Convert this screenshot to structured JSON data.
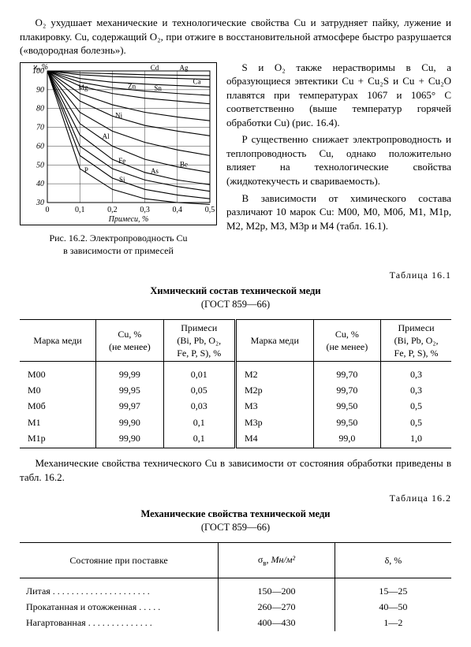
{
  "top_paragraphs": [
    "O₂ ухудшает механические и технологические свойства Cu и затрудняет пайку, лужение и плакировку. Cu, содержащий O₂, при отжиге в восстановительной атмосфере быстро разрушается («водородная болезнь»).",
    "S и O₂ также нерастворимы в Cu, а образующиеся эвтектики Cu + Cu₂S и Cu + Cu₂O плавятся при температурах 1067 и 1065° С соответственно (выше температур горячей обработки Cu) (рис. 16.4).",
    "P существенно снижает электропроводность и теплопроводность Cu, однако положительно влияет на технологические свойства (жидкотекучесть и свариваемость).",
    "В зависимости от химического состава различают 10 марок Cu: М00, М0, М0б, М1, М1р, М2, М2р, М3, М3р и М4 (табл. 16.1)."
  ],
  "figure": {
    "caption_line1": "Рис. 16.2. Электропроводность Cu",
    "caption_line2": "в зависимости от примесей",
    "x_axis_label": "Примеси, %",
    "y_axis_label": "ϰ, %",
    "x_ticks": [
      "0",
      "0,1",
      "0,2",
      "0,3",
      "0,4",
      "0,5"
    ],
    "y_ticks": [
      "30",
      "40",
      "50",
      "60",
      "70",
      "80",
      "90",
      "100"
    ],
    "curve_labels": [
      "Ag",
      "Cd",
      "Ca",
      "Sn",
      "Zn",
      "Mg",
      "Ni",
      "Al",
      "Be",
      "As",
      "Fe",
      "Si",
      "P"
    ],
    "curves": [
      {
        "label": "Ag",
        "pts": [
          [
            0,
            100
          ],
          [
            0.1,
            99
          ],
          [
            0.2,
            98.5
          ],
          [
            0.3,
            98
          ],
          [
            0.4,
            97.7
          ],
          [
            0.5,
            97.5
          ]
        ]
      },
      {
        "label": "Cd",
        "pts": [
          [
            0,
            100
          ],
          [
            0.1,
            98
          ],
          [
            0.2,
            97
          ],
          [
            0.3,
            96.5
          ],
          [
            0.4,
            96
          ],
          [
            0.5,
            95.5
          ]
        ]
      },
      {
        "label": "Ca",
        "pts": [
          [
            0,
            100
          ],
          [
            0.1,
            96
          ],
          [
            0.2,
            94
          ],
          [
            0.3,
            93
          ],
          [
            0.4,
            92.2
          ],
          [
            0.5,
            91.5
          ]
        ]
      },
      {
        "label": "Sn",
        "pts": [
          [
            0,
            100
          ],
          [
            0.1,
            94
          ],
          [
            0.2,
            91
          ],
          [
            0.3,
            89.3
          ],
          [
            0.4,
            88
          ],
          [
            0.5,
            87
          ]
        ]
      },
      {
        "label": "Zn",
        "pts": [
          [
            0,
            100
          ],
          [
            0.1,
            92
          ],
          [
            0.2,
            88
          ],
          [
            0.3,
            85.5
          ],
          [
            0.4,
            84
          ],
          [
            0.5,
            82.5
          ]
        ]
      },
      {
        "label": "Mg",
        "pts": [
          [
            0,
            100
          ],
          [
            0.1,
            88
          ],
          [
            0.2,
            82
          ],
          [
            0.3,
            78
          ],
          [
            0.4,
            75.5
          ],
          [
            0.5,
            73.5
          ]
        ]
      },
      {
        "label": "Ni",
        "pts": [
          [
            0,
            100
          ],
          [
            0.1,
            84
          ],
          [
            0.2,
            76
          ],
          [
            0.3,
            71
          ],
          [
            0.4,
            68
          ],
          [
            0.5,
            65.5
          ]
        ]
      },
      {
        "label": "Al",
        "pts": [
          [
            0,
            100
          ],
          [
            0.1,
            78
          ],
          [
            0.2,
            68
          ],
          [
            0.3,
            62
          ],
          [
            0.4,
            58
          ],
          [
            0.5,
            55
          ]
        ]
      },
      {
        "label": "Be",
        "pts": [
          [
            0,
            100
          ],
          [
            0.1,
            72
          ],
          [
            0.2,
            60
          ],
          [
            0.3,
            53
          ],
          [
            0.4,
            49
          ],
          [
            0.5,
            46
          ]
        ]
      },
      {
        "label": "As",
        "pts": [
          [
            0,
            100
          ],
          [
            0.1,
            66
          ],
          [
            0.2,
            53
          ],
          [
            0.3,
            46
          ],
          [
            0.4,
            42
          ],
          [
            0.5,
            39.5
          ]
        ]
      },
      {
        "label": "Fe",
        "pts": [
          [
            0,
            100
          ],
          [
            0.1,
            60
          ],
          [
            0.2,
            48
          ],
          [
            0.3,
            42
          ],
          [
            0.4,
            38.5
          ],
          [
            0.5,
            36
          ]
        ]
      },
      {
        "label": "Si",
        "pts": [
          [
            0,
            100
          ],
          [
            0.1,
            55
          ],
          [
            0.2,
            43
          ],
          [
            0.3,
            37
          ],
          [
            0.4,
            34
          ],
          [
            0.5,
            32
          ]
        ]
      },
      {
        "label": "P",
        "pts": [
          [
            0,
            100
          ],
          [
            0.1,
            48
          ],
          [
            0.2,
            37
          ],
          [
            0.3,
            32
          ],
          [
            0.4,
            30
          ],
          [
            0.5,
            29
          ]
        ]
      }
    ],
    "x_range": [
      0,
      0.5
    ],
    "y_range": [
      30,
      100
    ],
    "label_positions": {
      "Ag": [
        0.42,
        100.5
      ],
      "Cd": [
        0.33,
        100.5
      ],
      "Ca": [
        0.46,
        93
      ],
      "Sn": [
        0.34,
        89.5
      ],
      "Zn": [
        0.26,
        90.5
      ],
      "Mg": [
        0.11,
        90
      ],
      "Ni": [
        0.22,
        75
      ],
      "Al": [
        0.18,
        64
      ],
      "Be": [
        0.42,
        49
      ],
      "As": [
        0.33,
        45.5
      ],
      "Fe": [
        0.23,
        51
      ],
      "Si": [
        0.23,
        41
      ],
      "P": [
        0.12,
        46
      ]
    }
  },
  "table1": {
    "label": "Таблица 16.1",
    "title": "Химический состав технической меди",
    "subtitle": "(ГОСТ 859—66)",
    "headers": [
      "Марка меди",
      "Cu, %\n(не менее)",
      "Примеси\n(Bi, Pb, O₂,\nFe, P, S), %",
      "Марка меди",
      "Cu, %\n(не менее)",
      "Примеси\n(Bi, Pb, O₂,\nFe, P, S), %"
    ],
    "rows": [
      [
        "М00",
        "99,99",
        "0,01",
        "М2",
        "99,70",
        "0,3"
      ],
      [
        "М0",
        "99,95",
        "0,05",
        "М2р",
        "99,70",
        "0,3"
      ],
      [
        "М0б",
        "99,97",
        "0,03",
        "М3",
        "99,50",
        "0,5"
      ],
      [
        "М1",
        "99,90",
        "0,1",
        "М3р",
        "99,50",
        "0,5"
      ],
      [
        "М1р",
        "99,90",
        "0,1",
        "М4",
        "99,0",
        "1,0"
      ]
    ]
  },
  "mid_paragraph": "Механические свойства технического Cu в зависимости от состояния обработки приведены в табл. 16.2.",
  "table2": {
    "label": "Таблица 16.2",
    "title": "Механические свойства технической меди",
    "subtitle": "(ГОСТ 859—66)",
    "headers": [
      "Состояние при поставке",
      "σ_в, Мн/м²",
      "δ, %"
    ],
    "rows": [
      [
        "Литая . . . . . . . . . . . . . . . . . . . . .",
        "150—200",
        "15—25"
      ],
      [
        "Прокатанная и отожженная . . . . .",
        "260—270",
        "40—50"
      ],
      [
        "Нагартованная . . . . . . . . . . . . . .",
        "400—430",
        "1—2"
      ]
    ]
  },
  "colors": {
    "line": "#000",
    "bg": "#fff"
  }
}
